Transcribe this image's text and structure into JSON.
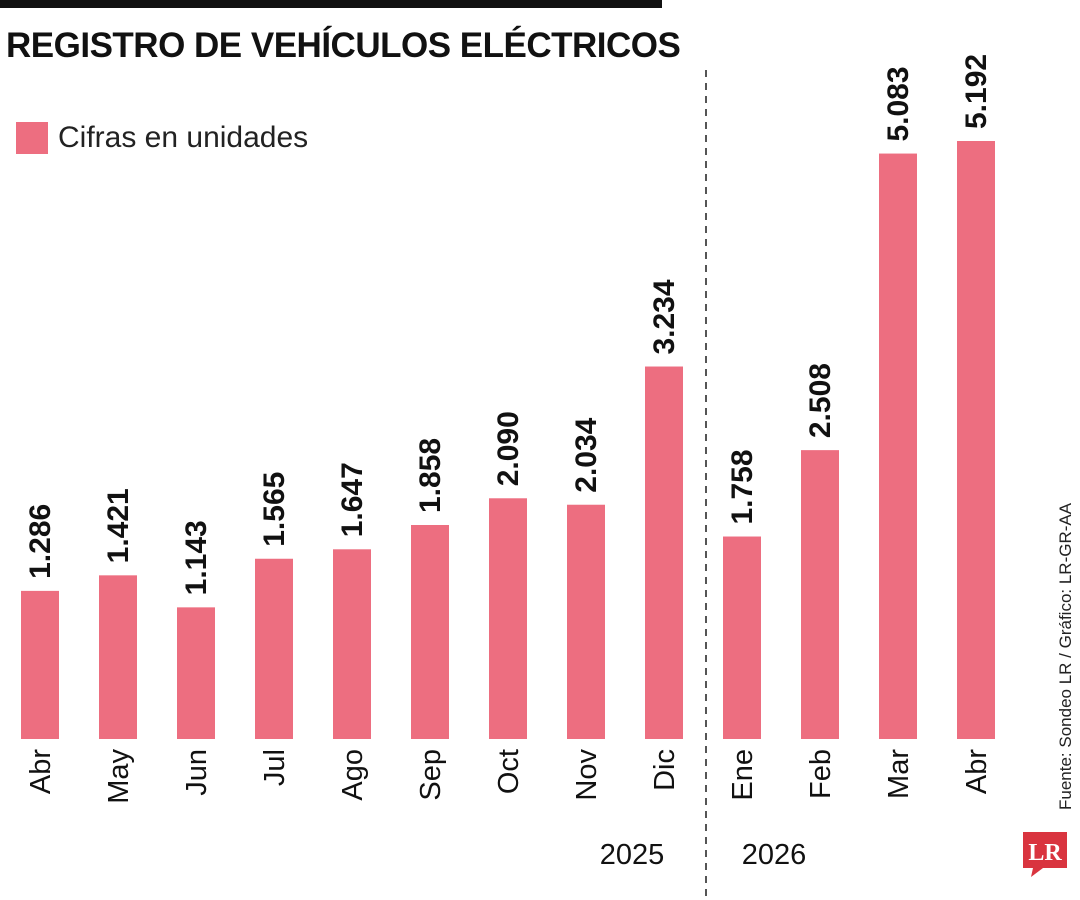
{
  "header": {
    "title": "REGISTRO DE VEHÍCULOS ELÉCTRICOS"
  },
  "legend": {
    "label": "Cifras en unidades"
  },
  "colors": {
    "bar": "#ed6e80",
    "text": "#111111",
    "divider": "#555555",
    "logo": "#d9343f"
  },
  "chart_data": {
    "type": "bar",
    "title": "REGISTRO DE VEHÍCULOS ELÉCTRICOS",
    "xlabel": "",
    "ylabel": "",
    "ylim": [
      0,
      5192
    ],
    "grid": false,
    "legend": "top-left",
    "categories": [
      "Abr",
      "May",
      "Jun",
      "Jul",
      "Ago",
      "Sep",
      "Oct",
      "Nov",
      "Dic",
      "Ene",
      "Feb",
      "Mar",
      "Abr"
    ],
    "values": [
      1286,
      1421,
      1143,
      1565,
      1647,
      1858,
      2090,
      2034,
      3234,
      1758,
      2508,
      5083,
      5192
    ],
    "value_labels": [
      "1.286",
      "1.421",
      "1.143",
      "1.565",
      "1.647",
      "1.858",
      "2.090",
      "2.034",
      "3.234",
      "1.758",
      "2.508",
      "5.083",
      "5.192"
    ],
    "series": [
      {
        "name": "Cifras en unidades",
        "values": [
          1286,
          1421,
          1143,
          1565,
          1647,
          1858,
          2090,
          2034,
          3234,
          1758,
          2508,
          5083,
          5192
        ]
      }
    ],
    "year_groups": [
      {
        "label": "2025",
        "from": "Abr",
        "to": "Dic"
      },
      {
        "label": "2026",
        "from": "Ene",
        "to": "Abr"
      }
    ]
  },
  "footer": {
    "source": "Fuente: Sondeo LR / Gráfico: LR-GR-AA",
    "logo_text": "LR"
  }
}
